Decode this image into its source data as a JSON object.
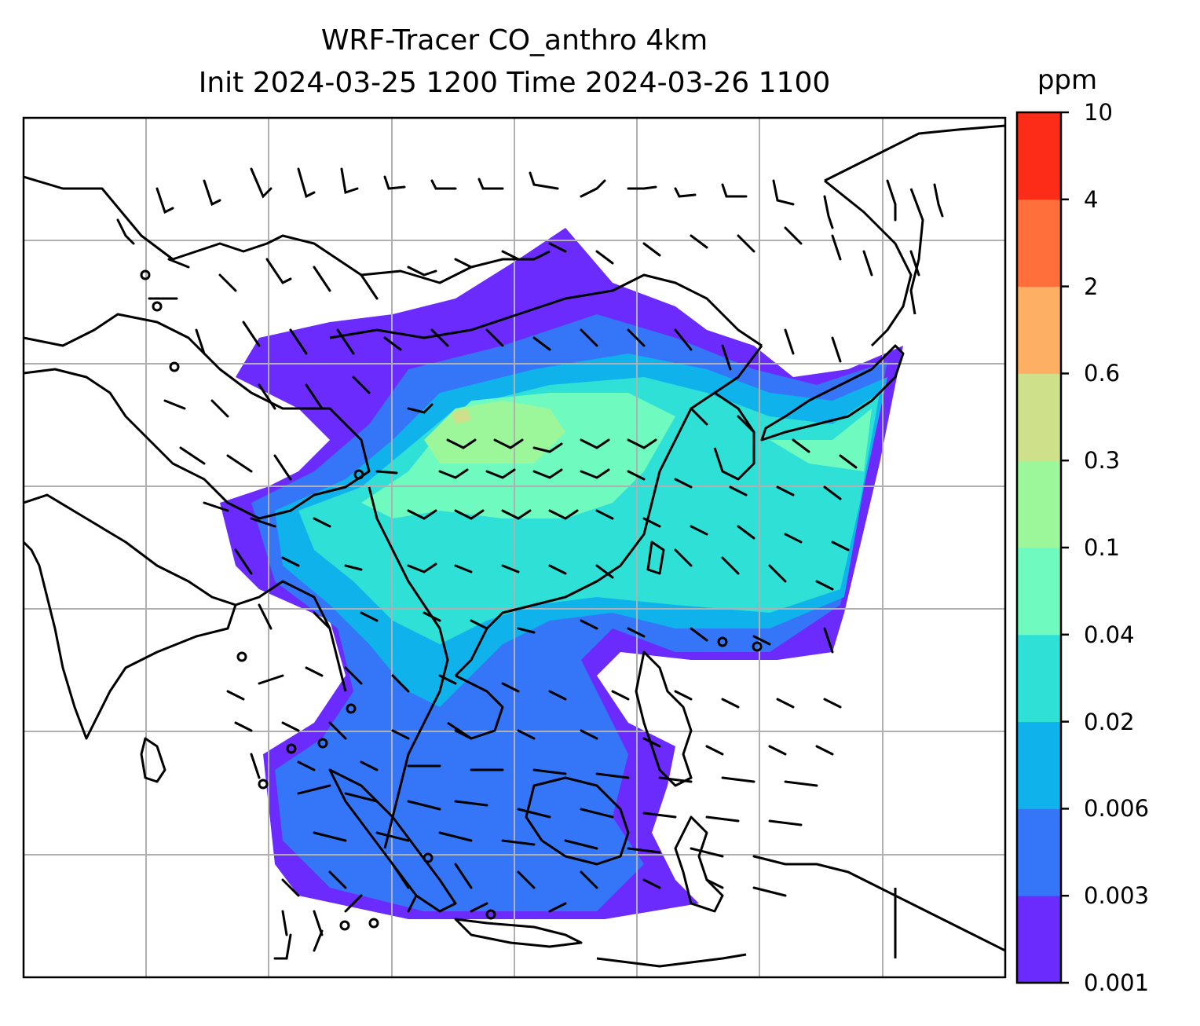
{
  "title": {
    "line1": "WRF-Tracer CO_anthro 4km",
    "line2": "Init 2024-03-25 1200 Time 2024-03-26 1100"
  },
  "colorbar": {
    "unit": "ppm",
    "levels": [
      "0.001",
      "0.003",
      "0.006",
      "0.02",
      "0.04",
      "0.1",
      "0.3",
      "0.6",
      "2",
      "4",
      "10"
    ],
    "colors": [
      "#6a2bfc",
      "#3476f7",
      "#0fb2ea",
      "#2ee0d6",
      "#6ffac0",
      "#9cf79a",
      "#cfe08a",
      "#fdb064",
      "#fe6f3b",
      "#fd2c18"
    ]
  },
  "map": {
    "field": "CO_anthro tracer concentration",
    "overlays": [
      "coastlines",
      "country-borders",
      "lat-lon-gridlines",
      "wind-barbs"
    ]
  }
}
